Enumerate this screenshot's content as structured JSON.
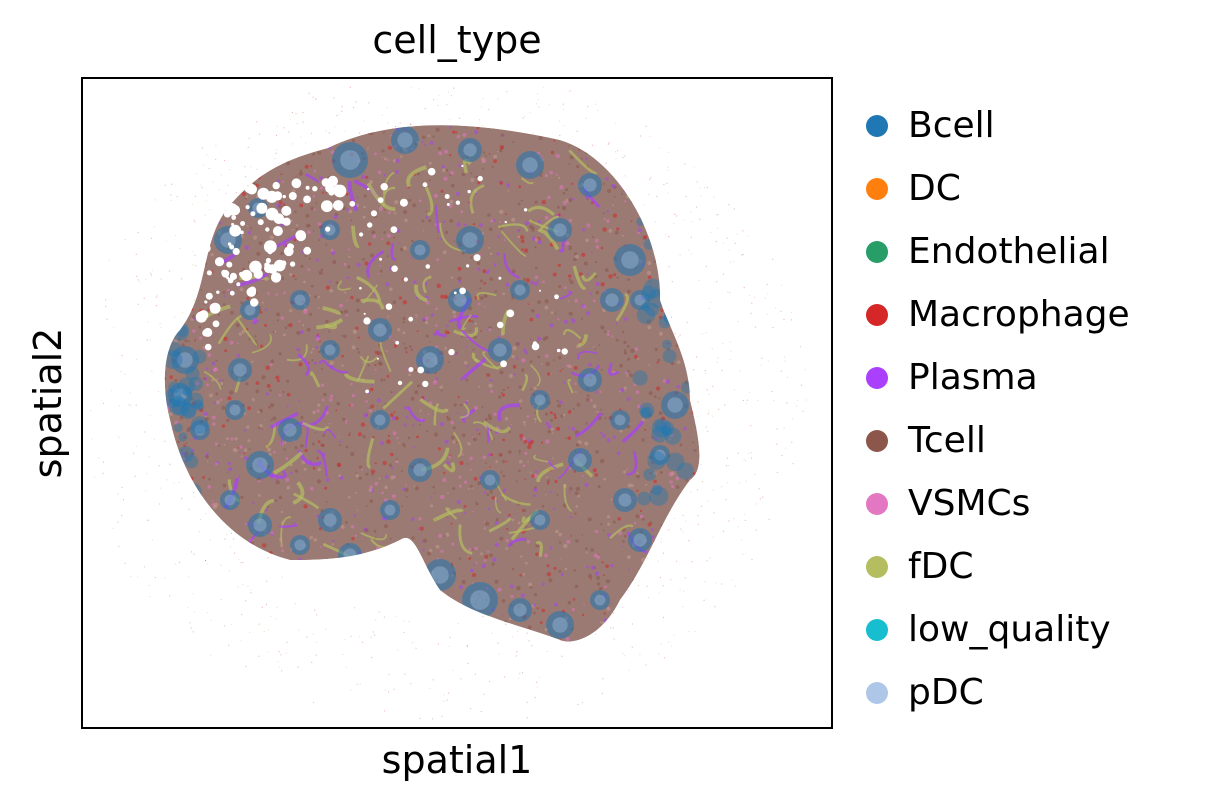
{
  "chart_data": {
    "type": "scatter",
    "title": "cell_type",
    "xlabel": "spatial1",
    "ylabel": "spatial2",
    "xticks": [],
    "yticks": [],
    "grid": false,
    "legend_position": "right-outside",
    "series": [
      {
        "name": "Bcell",
        "color": "#1f77b4"
      },
      {
        "name": "DC",
        "color": "#ff7f0e"
      },
      {
        "name": "Endothelial",
        "color": "#279e68"
      },
      {
        "name": "Macrophage",
        "color": "#d62728"
      },
      {
        "name": "Plasma",
        "color": "#aa40fc"
      },
      {
        "name": "Tcell",
        "color": "#8c564b"
      },
      {
        "name": "VSMCs",
        "color": "#e377c2"
      },
      {
        "name": "fDC",
        "color": "#b5bd61"
      },
      {
        "name": "low_quality",
        "color": "#17becf"
      },
      {
        "name": "pDC",
        "color": "#aec7e8"
      }
    ]
  }
}
